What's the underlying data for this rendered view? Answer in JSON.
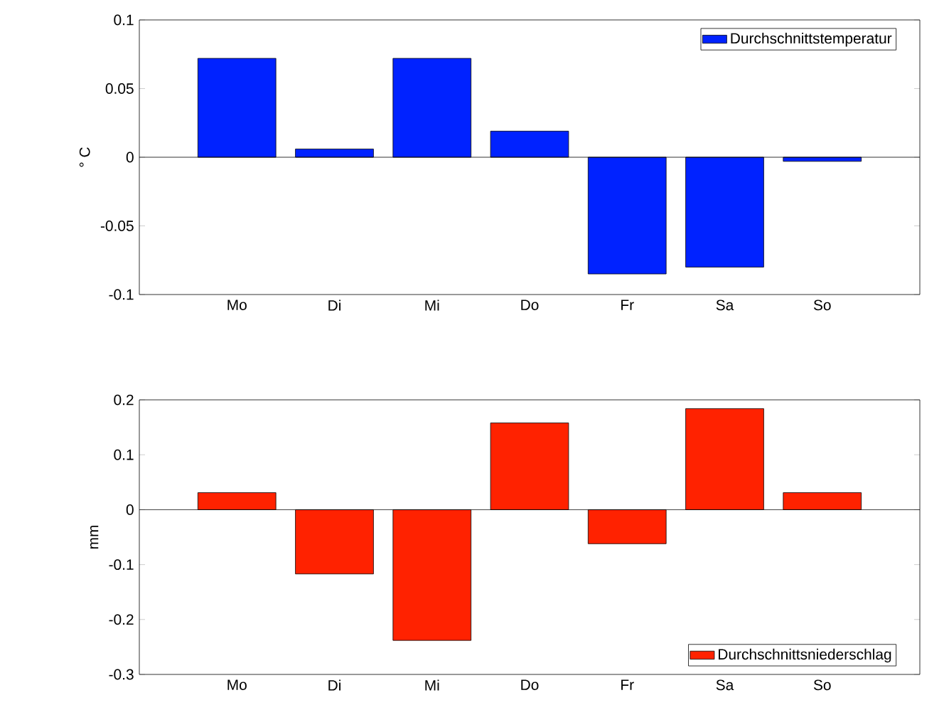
{
  "chart_data": [
    {
      "type": "bar",
      "ylabel": "° C",
      "categories": [
        "Mo",
        "Di",
        "Mi",
        "Do",
        "Fr",
        "Sa",
        "So"
      ],
      "ylim": [
        -0.1,
        0.1
      ],
      "yticks": [
        -0.1,
        -0.05,
        0,
        0.05,
        0.1
      ],
      "legend": "top right",
      "series": [
        {
          "name": "Durchschnittstemperatur",
          "color": "#0022ff",
          "values": [
            0.072,
            0.006,
            0.072,
            0.019,
            -0.085,
            -0.08,
            -0.003
          ]
        }
      ]
    },
    {
      "type": "bar",
      "ylabel": "mm",
      "categories": [
        "Mo",
        "Di",
        "Mi",
        "Do",
        "Fr",
        "Sa",
        "So"
      ],
      "ylim": [
        -0.3,
        0.2
      ],
      "yticks": [
        -0.3,
        -0.2,
        -0.1,
        0,
        0.1,
        0.2
      ],
      "legend": "bottom right",
      "series": [
        {
          "name": "Durchschnittsniederschlag",
          "color": "#ff2200",
          "values": [
            0.031,
            -0.117,
            -0.238,
            0.158,
            -0.062,
            0.184,
            0.031
          ]
        }
      ]
    }
  ]
}
